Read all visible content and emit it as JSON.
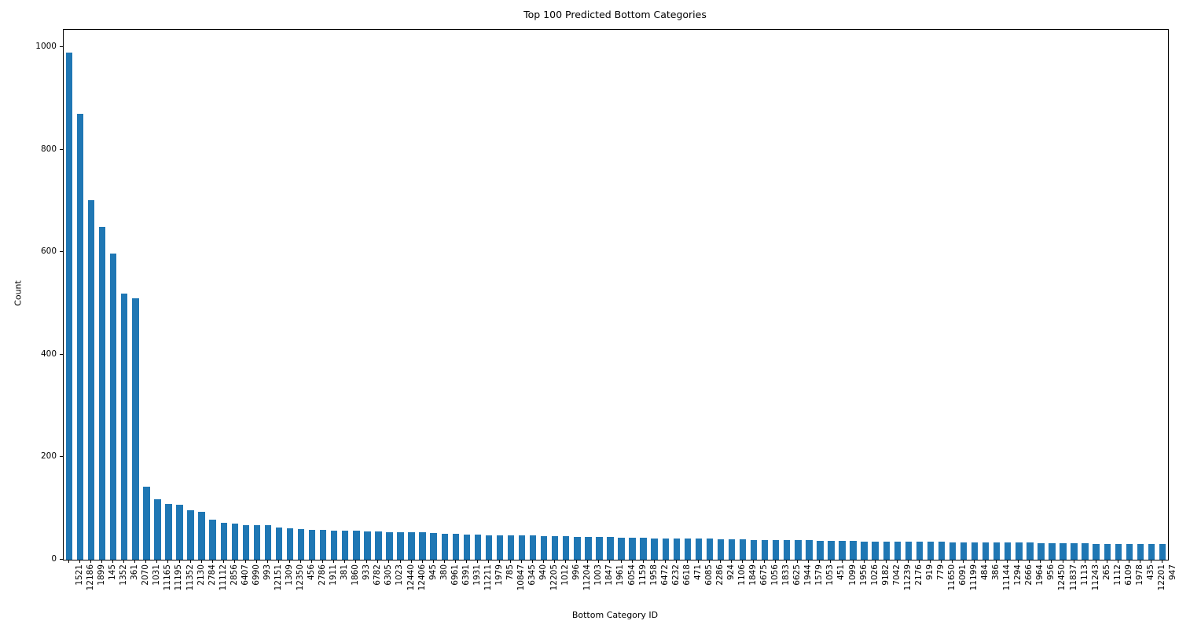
{
  "accent_color": "#1f77b4",
  "chart_data": {
    "type": "bar",
    "title": "Top 100 Predicted Bottom Categories",
    "xlabel": "Bottom Category ID",
    "ylabel": "Count",
    "bar_color": "#1f77b4",
    "grid": false,
    "legend": null,
    "ylim": [
      0,
      1034
    ],
    "yticks": [
      0,
      200,
      400,
      600,
      800,
      1000
    ],
    "categories": [
      "1521",
      "12186",
      "1899",
      "145",
      "1352",
      "361",
      "2070",
      "1031",
      "11165",
      "11195",
      "11352",
      "2130",
      "2784",
      "11112",
      "2856",
      "6407",
      "6990",
      "993",
      "12151",
      "1309",
      "12350",
      "456",
      "2786",
      "1911",
      "381",
      "1860",
      "933",
      "6782",
      "6305",
      "1023",
      "12440",
      "12406",
      "945",
      "380",
      "6961",
      "6391",
      "1931",
      "11211",
      "1979",
      "785",
      "10847",
      "6345",
      "940",
      "12205",
      "1012",
      "996",
      "11204",
      "1003",
      "1847",
      "1961",
      "6054",
      "1159",
      "1958",
      "6472",
      "6232",
      "6618",
      "471",
      "6085",
      "2286",
      "924",
      "1106",
      "1849",
      "6675",
      "1056",
      "1833",
      "6625",
      "1944",
      "1579",
      "1053",
      "451",
      "1099",
      "1956",
      "1026",
      "9182",
      "7042",
      "11239",
      "2176",
      "919",
      "779",
      "11650",
      "6091",
      "11199",
      "484",
      "386",
      "11144",
      "1294",
      "2666",
      "1964",
      "956",
      "12450",
      "11837",
      "1113",
      "11243",
      "265",
      "1112",
      "6109",
      "1978",
      "435",
      "12201",
      "947"
    ],
    "values": [
      990,
      870,
      701,
      650,
      598,
      520,
      510,
      143,
      118,
      109,
      107,
      96,
      94,
      78,
      72,
      70,
      68,
      68,
      67,
      63,
      61,
      60,
      59,
      58,
      57,
      57,
      56,
      55,
      55,
      54,
      54,
      53,
      53,
      52,
      51,
      51,
      49,
      49,
      48,
      48,
      48,
      47,
      47,
      46,
      46,
      46,
      45,
      45,
      44,
      44,
      43,
      43,
      43,
      42,
      42,
      42,
      41,
      41,
      41,
      40,
      40,
      40,
      39,
      39,
      38,
      38,
      38,
      38,
      37,
      37,
      37,
      37,
      36,
      36,
      36,
      36,
      35,
      35,
      35,
      35,
      34,
      34,
      34,
      34,
      33,
      33,
      33,
      33,
      32,
      32,
      32,
      32,
      32,
      31,
      31,
      31,
      31,
      31,
      30,
      30
    ]
  }
}
